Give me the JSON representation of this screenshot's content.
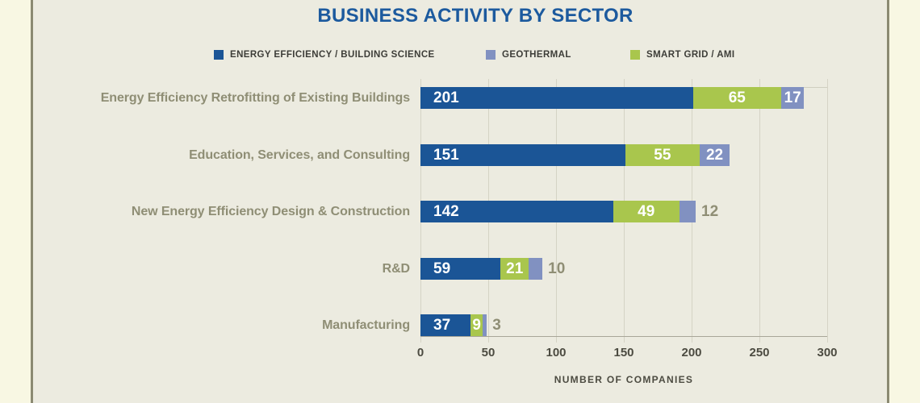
{
  "title": "BUSINESS ACTIVITY BY SECTOR",
  "chart_data": {
    "type": "bar",
    "orientation": "horizontal",
    "stacked": true,
    "title": "BUSINESS ACTIVITY BY SECTOR",
    "xlabel": "NUMBER OF COMPANIES",
    "xlim": [
      0,
      300
    ],
    "x_ticks": [
      0,
      50,
      100,
      150,
      200,
      250,
      300
    ],
    "grid": "vertical",
    "legend_position": "top",
    "categories": [
      "Energy Efficiency Retrofitting of Existing Buildings",
      "Education, Services, and Consulting",
      "New Energy Efficiency Design & Construction",
      "R&D",
      "Manufacturing"
    ],
    "series": [
      {
        "name": "ENERGY EFFICIENCY / BUILDING SCIENCE",
        "color": "#1b5596",
        "values": [
          201,
          151,
          142,
          59,
          37
        ]
      },
      {
        "name": "GEOTHERMAL",
        "color": "#8191c1",
        "values": [
          17,
          22,
          12,
          10,
          3
        ]
      },
      {
        "name": "SMART GRID / AMI",
        "color": "#a9c64d",
        "values": [
          65,
          55,
          49,
          21,
          9
        ]
      }
    ],
    "stack_order": [
      0,
      2,
      1
    ]
  },
  "colors": {
    "page_bg": "#f8f7e3",
    "panel_bg": "#ecebe0",
    "panel_border": "#8b8a72",
    "title_text": "#1c5a9e",
    "category_label": "#8f8e75",
    "outside_value_label": "#8f8e75",
    "tick_label": "#4c4b41",
    "legend_text": "#3d3d38",
    "gridline": "#d5d3c5"
  }
}
